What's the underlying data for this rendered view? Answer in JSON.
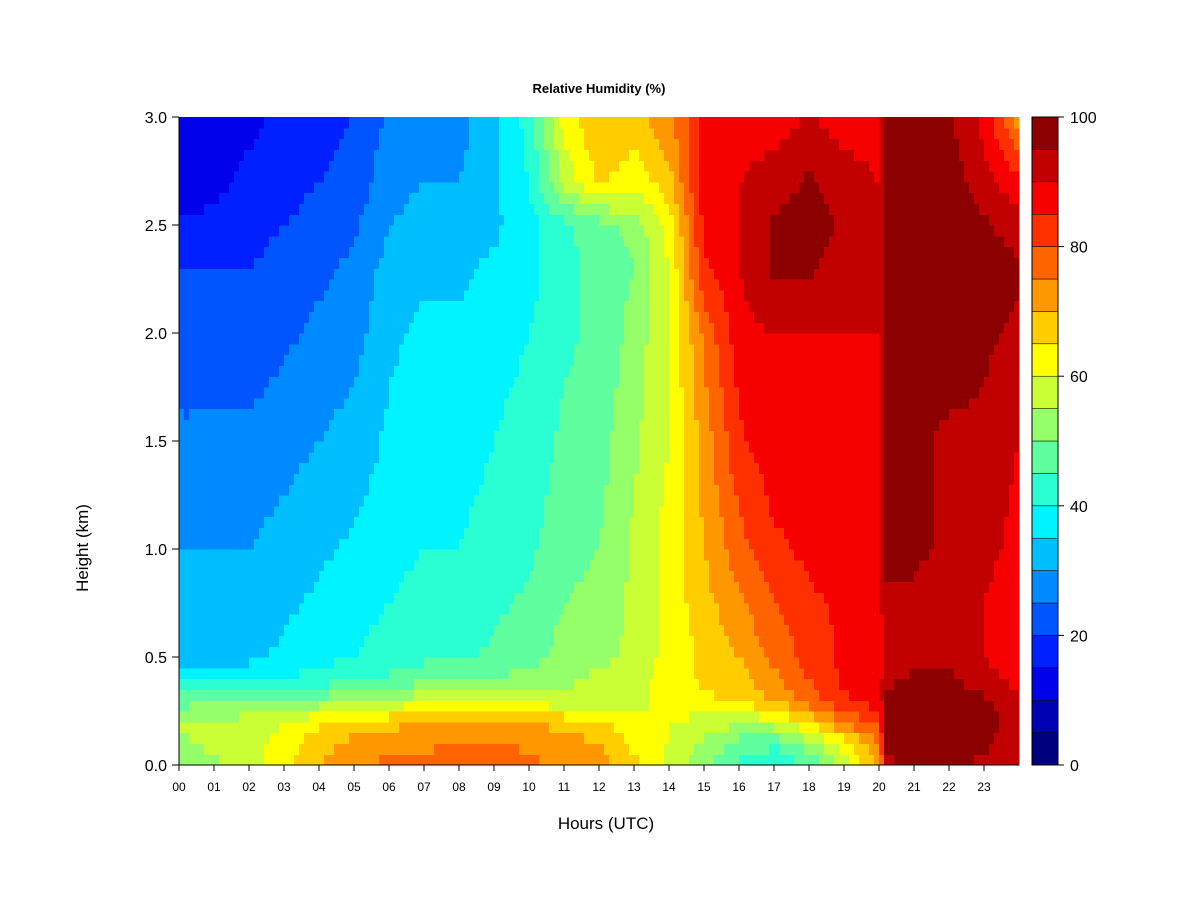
{
  "chart_data": {
    "type": "heatmap",
    "title": "Relative Humidity (%)",
    "xlabel": "Hours (UTC)",
    "ylabel": "Height (km)",
    "x_ticks": [
      "00",
      "01",
      "02",
      "03",
      "04",
      "05",
      "06",
      "07",
      "08",
      "09",
      "10",
      "11",
      "12",
      "13",
      "14",
      "15",
      "16",
      "17",
      "18",
      "19",
      "20",
      "21",
      "22",
      "23"
    ],
    "y_ticks": [
      "0.0",
      "0.5",
      "1.0",
      "1.5",
      "2.0",
      "2.5",
      "3.0"
    ],
    "xlim": [
      0,
      24
    ],
    "ylim": [
      0,
      3
    ],
    "colorbar": {
      "ticks": [
        "0",
        "20",
        "40",
        "60",
        "80",
        "100"
      ],
      "range": [
        0,
        100
      ],
      "levels": 20,
      "colors": [
        "#00007f",
        "#0000b5",
        "#0000ea",
        "#0020ff",
        "#0055ff",
        "#008aff",
        "#00bfff",
        "#00f4ff",
        "#2affd4",
        "#5fff9f",
        "#95ff6a",
        "#caff35",
        "#ffff00",
        "#ffcd00",
        "#ff9800",
        "#ff6400",
        "#ff3000",
        "#f70000",
        "#c20000",
        "#8c0000"
      ]
    },
    "heights_km": [
      0.0,
      0.1,
      0.2,
      0.3,
      0.4,
      0.5,
      0.75,
      1.0,
      1.5,
      2.0,
      2.3,
      2.5,
      2.7,
      3.0
    ],
    "hours_utc": [
      0,
      1,
      2,
      3,
      4,
      5,
      6,
      7,
      8,
      9,
      10,
      11,
      12,
      13,
      14,
      15,
      16,
      17,
      18,
      19,
      20,
      20.2,
      21,
      22,
      23,
      24
    ],
    "relative_humidity": [
      [
        52,
        54,
        58,
        64,
        70,
        74,
        76,
        76,
        78,
        78,
        76,
        74,
        72,
        66,
        58,
        52,
        44,
        40,
        46,
        58,
        70,
        94,
        96,
        96,
        94,
        92
      ],
      [
        54,
        56,
        58,
        62,
        68,
        72,
        74,
        74,
        76,
        76,
        74,
        72,
        70,
        64,
        60,
        54,
        48,
        46,
        52,
        62,
        74,
        96,
        96,
        96,
        96,
        92
      ],
      [
        56,
        56,
        58,
        60,
        64,
        66,
        68,
        70,
        70,
        70,
        70,
        68,
        66,
        62,
        60,
        58,
        56,
        58,
        66,
        76,
        82,
        96,
        98,
        98,
        96,
        94
      ],
      [
        48,
        48,
        48,
        50,
        52,
        54,
        56,
        58,
        58,
        58,
        58,
        56,
        56,
        58,
        62,
        64,
        66,
        70,
        78,
        84,
        88,
        96,
        98,
        98,
        96,
        92
      ],
      [
        38,
        38,
        38,
        40,
        42,
        44,
        46,
        48,
        48,
        50,
        52,
        54,
        56,
        58,
        62,
        66,
        68,
        74,
        80,
        86,
        88,
        94,
        96,
        96,
        92,
        88
      ],
      [
        32,
        32,
        34,
        36,
        38,
        40,
        42,
        44,
        44,
        46,
        48,
        52,
        54,
        56,
        62,
        66,
        70,
        76,
        82,
        86,
        88,
        92,
        94,
        94,
        90,
        86
      ],
      [
        30,
        30,
        32,
        34,
        36,
        38,
        40,
        42,
        42,
        44,
        46,
        50,
        52,
        56,
        62,
        68,
        74,
        80,
        84,
        86,
        88,
        94,
        94,
        92,
        90,
        86
      ],
      [
        30,
        30,
        30,
        32,
        34,
        36,
        38,
        40,
        40,
        42,
        44,
        48,
        50,
        56,
        62,
        70,
        78,
        84,
        86,
        88,
        88,
        96,
        96,
        94,
        92,
        88
      ],
      [
        26,
        26,
        26,
        28,
        30,
        32,
        36,
        38,
        38,
        40,
        42,
        46,
        48,
        54,
        60,
        72,
        84,
        88,
        88,
        88,
        88,
        96,
        96,
        94,
        94,
        90
      ],
      [
        22,
        22,
        22,
        24,
        26,
        28,
        34,
        36,
        36,
        38,
        40,
        44,
        46,
        52,
        60,
        76,
        88,
        90,
        90,
        90,
        90,
        98,
        98,
        98,
        96,
        94
      ],
      [
        20,
        20,
        20,
        22,
        24,
        26,
        32,
        34,
        34,
        36,
        38,
        44,
        46,
        50,
        60,
        84,
        90,
        96,
        96,
        92,
        90,
        98,
        98,
        98,
        98,
        96
      ],
      [
        16,
        16,
        18,
        20,
        22,
        24,
        30,
        32,
        32,
        34,
        38,
        44,
        48,
        52,
        62,
        86,
        90,
        96,
        98,
        94,
        90,
        98,
        98,
        98,
        96,
        92
      ],
      [
        12,
        14,
        16,
        18,
        20,
        22,
        28,
        30,
        30,
        34,
        40,
        56,
        66,
        62,
        68,
        88,
        90,
        92,
        96,
        92,
        90,
        98,
        98,
        98,
        92,
        86
      ],
      [
        10,
        12,
        14,
        16,
        18,
        20,
        26,
        28,
        28,
        34,
        42,
        62,
        70,
        68,
        74,
        86,
        88,
        88,
        90,
        88,
        88,
        96,
        96,
        96,
        88,
        72
      ]
    ]
  }
}
